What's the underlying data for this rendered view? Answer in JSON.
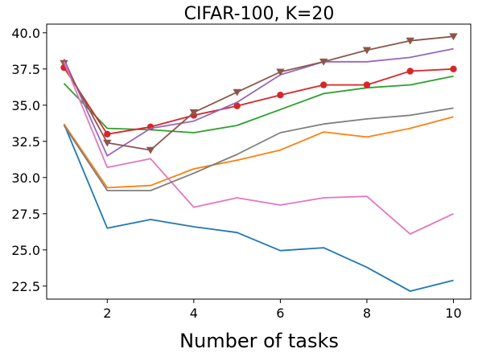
{
  "chart_data": {
    "type": "line",
    "title": "CIFAR-100, K=20",
    "xlabel": "Number of tasks",
    "ylabel": "",
    "xlim": [
      0.6,
      10.4
    ],
    "ylim": [
      21.6,
      40.6
    ],
    "xticks": [
      2,
      4,
      6,
      8,
      10
    ],
    "xtick_labels": [
      "2",
      "4",
      "6",
      "8",
      "10"
    ],
    "yticks": [
      22.5,
      25.0,
      27.5,
      30.0,
      32.5,
      35.0,
      37.5,
      40.0
    ],
    "ytick_labels": [
      "22.5",
      "25.0",
      "27.5",
      "30.0",
      "32.5",
      "35.0",
      "37.5",
      "40.0"
    ],
    "grid": false,
    "legend": "none",
    "x": [
      1,
      2,
      3,
      4,
      5,
      6,
      7,
      8,
      9,
      10
    ],
    "series": [
      {
        "color": "#1f77b4",
        "marker": "none",
        "values": [
          33.7,
          26.5,
          27.1,
          26.6,
          26.2,
          24.95,
          25.15,
          23.8,
          22.15,
          22.9
        ]
      },
      {
        "color": "#ff7f0e",
        "marker": "none",
        "values": [
          33.7,
          29.3,
          29.45,
          30.6,
          31.2,
          31.9,
          33.15,
          32.8,
          33.4,
          34.2
        ]
      },
      {
        "color": "#2ca02c",
        "marker": "none",
        "values": [
          36.5,
          33.4,
          33.3,
          33.1,
          33.6,
          34.7,
          35.8,
          36.2,
          36.4,
          37.0
        ]
      },
      {
        "color": "#d62728",
        "marker": "circle",
        "values": [
          37.6,
          33.0,
          33.5,
          34.3,
          34.95,
          35.7,
          36.4,
          36.4,
          37.35,
          37.5
        ]
      },
      {
        "color": "#9467bd",
        "marker": "none",
        "values": [
          38.2,
          31.5,
          33.4,
          33.9,
          35.2,
          37.1,
          38.0,
          38.0,
          38.3,
          38.9
        ]
      },
      {
        "color": "#8c564b",
        "marker": "triangle-down",
        "values": [
          37.9,
          32.4,
          31.9,
          34.5,
          35.9,
          37.3,
          38.0,
          38.8,
          39.45,
          39.75
        ]
      },
      {
        "color": "#e377c2",
        "marker": "none",
        "values": [
          38.0,
          30.7,
          31.3,
          27.95,
          28.6,
          28.1,
          28.6,
          28.7,
          26.1,
          27.5
        ]
      },
      {
        "color": "#7f7f7f",
        "marker": "none",
        "values": [
          33.6,
          29.1,
          29.1,
          30.3,
          31.6,
          33.1,
          33.7,
          34.05,
          34.3,
          34.8
        ]
      }
    ]
  }
}
